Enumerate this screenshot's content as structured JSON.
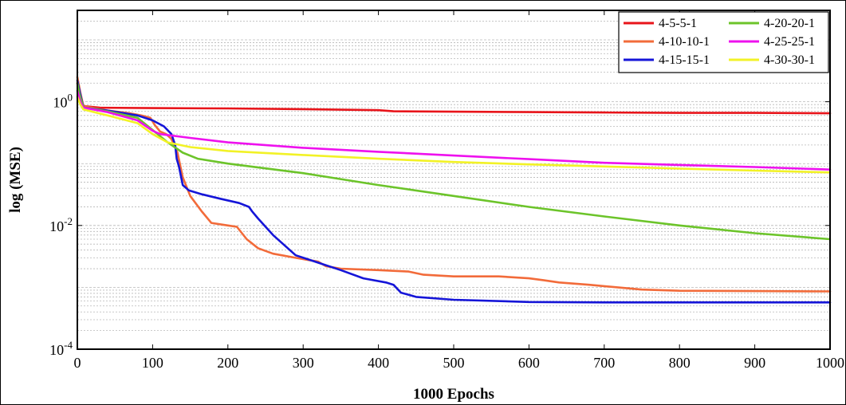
{
  "chart_data": {
    "type": "line",
    "title": "",
    "xlabel": "1000 Epochs",
    "ylabel": "log (MSE)",
    "xlim": [
      0,
      1000
    ],
    "ylim": [
      0.0001,
      30
    ],
    "yscale": "log",
    "grid": "horizontal minor dotted",
    "legend_position": "top-right",
    "x_ticks": [
      0,
      100,
      200,
      300,
      400,
      500,
      600,
      700,
      800,
      900,
      1000
    ],
    "x_tick_labels": [
      "0",
      "100",
      "200",
      "300",
      "400",
      "500",
      "600",
      "700",
      "800",
      "900",
      "1000"
    ],
    "y_ticks": [
      {
        "value": 0.0001,
        "base": "10",
        "exp": "-4"
      },
      {
        "value": 0.01,
        "base": "10",
        "exp": "-2"
      },
      {
        "value": 1,
        "base": "10",
        "exp": "0"
      }
    ],
    "series": [
      {
        "name": "4-5-5-1",
        "color": "#e8141a",
        "points": [
          [
            0,
            2.0
          ],
          [
            3,
            1.2
          ],
          [
            8,
            0.85
          ],
          [
            30,
            0.8
          ],
          [
            100,
            0.79
          ],
          [
            200,
            0.78
          ],
          [
            300,
            0.76
          ],
          [
            400,
            0.73
          ],
          [
            420,
            0.7
          ],
          [
            500,
            0.69
          ],
          [
            600,
            0.68
          ],
          [
            700,
            0.67
          ],
          [
            800,
            0.66
          ],
          [
            900,
            0.66
          ],
          [
            1000,
            0.65
          ]
        ]
      },
      {
        "name": "4-10-10-1",
        "color": "#f26b3a",
        "points": [
          [
            0,
            2.5
          ],
          [
            4,
            1.4
          ],
          [
            8,
            0.85
          ],
          [
            40,
            0.72
          ],
          [
            70,
            0.65
          ],
          [
            85,
            0.6
          ],
          [
            97,
            0.55
          ],
          [
            103,
            0.42
          ],
          [
            110,
            0.33
          ],
          [
            118,
            0.3
          ],
          [
            125,
            0.25
          ],
          [
            133,
            0.15
          ],
          [
            140,
            0.06
          ],
          [
            150,
            0.03
          ],
          [
            165,
            0.017
          ],
          [
            178,
            0.011
          ],
          [
            200,
            0.01
          ],
          [
            212,
            0.0095
          ],
          [
            225,
            0.006
          ],
          [
            240,
            0.0043
          ],
          [
            260,
            0.0035
          ],
          [
            290,
            0.003
          ],
          [
            320,
            0.0026
          ],
          [
            330,
            0.0022
          ],
          [
            350,
            0.002
          ],
          [
            400,
            0.0019
          ],
          [
            440,
            0.0018
          ],
          [
            460,
            0.0016
          ],
          [
            500,
            0.0015
          ],
          [
            560,
            0.0015
          ],
          [
            600,
            0.0014
          ],
          [
            620,
            0.0013
          ],
          [
            640,
            0.0012
          ],
          [
            680,
            0.0011
          ],
          [
            750,
            0.00092
          ],
          [
            800,
            0.00088
          ],
          [
            900,
            0.00087
          ],
          [
            1000,
            0.00086
          ]
        ]
      },
      {
        "name": "4-15-15-1",
        "color": "#1515d8",
        "points": [
          [
            0,
            2.2
          ],
          [
            4,
            1.3
          ],
          [
            8,
            0.8
          ],
          [
            40,
            0.72
          ],
          [
            80,
            0.6
          ],
          [
            100,
            0.5
          ],
          [
            115,
            0.4
          ],
          [
            125,
            0.3
          ],
          [
            130,
            0.2
          ],
          [
            132,
            0.12
          ],
          [
            135,
            0.09
          ],
          [
            140,
            0.045
          ],
          [
            148,
            0.037
          ],
          [
            165,
            0.032
          ],
          [
            190,
            0.027
          ],
          [
            215,
            0.023
          ],
          [
            228,
            0.02
          ],
          [
            232,
            0.017
          ],
          [
            240,
            0.013
          ],
          [
            260,
            0.007
          ],
          [
            290,
            0.0033
          ],
          [
            320,
            0.0025
          ],
          [
            350,
            0.0019
          ],
          [
            380,
            0.0014
          ],
          [
            410,
            0.0012
          ],
          [
            420,
            0.0011
          ],
          [
            430,
            0.00082
          ],
          [
            450,
            0.0007
          ],
          [
            500,
            0.00063
          ],
          [
            600,
            0.00058
          ],
          [
            700,
            0.00057
          ],
          [
            800,
            0.00057
          ],
          [
            900,
            0.00057
          ],
          [
            1000,
            0.00057
          ]
        ]
      },
      {
        "name": "4-20-20-1",
        "color": "#6cc42a",
        "points": [
          [
            0,
            2.0
          ],
          [
            3,
            1.3
          ],
          [
            8,
            0.8
          ],
          [
            40,
            0.7
          ],
          [
            80,
            0.55
          ],
          [
            100,
            0.35
          ],
          [
            120,
            0.22
          ],
          [
            140,
            0.15
          ],
          [
            160,
            0.12
          ],
          [
            200,
            0.1
          ],
          [
            300,
            0.07
          ],
          [
            400,
            0.045
          ],
          [
            500,
            0.03
          ],
          [
            600,
            0.02
          ],
          [
            700,
            0.014
          ],
          [
            800,
            0.01
          ],
          [
            900,
            0.0075
          ],
          [
            1000,
            0.006
          ]
        ]
      },
      {
        "name": "4-25-25-1",
        "color": "#ee11ee",
        "points": [
          [
            0,
            1.5
          ],
          [
            4,
            1.0
          ],
          [
            8,
            0.8
          ],
          [
            40,
            0.68
          ],
          [
            80,
            0.5
          ],
          [
            100,
            0.34
          ],
          [
            110,
            0.3
          ],
          [
            150,
            0.26
          ],
          [
            200,
            0.22
          ],
          [
            300,
            0.18
          ],
          [
            400,
            0.155
          ],
          [
            500,
            0.135
          ],
          [
            600,
            0.118
          ],
          [
            700,
            0.103
          ],
          [
            800,
            0.095
          ],
          [
            900,
            0.088
          ],
          [
            1000,
            0.08
          ]
        ]
      },
      {
        "name": "4-30-30-1",
        "color": "#f2f226",
        "points": [
          [
            0,
            1.2
          ],
          [
            4,
            0.9
          ],
          [
            8,
            0.75
          ],
          [
            40,
            0.6
          ],
          [
            80,
            0.45
          ],
          [
            100,
            0.3
          ],
          [
            120,
            0.22
          ],
          [
            150,
            0.185
          ],
          [
            200,
            0.16
          ],
          [
            300,
            0.138
          ],
          [
            400,
            0.12
          ],
          [
            500,
            0.106
          ],
          [
            600,
            0.097
          ],
          [
            700,
            0.09
          ],
          [
            800,
            0.083
          ],
          [
            900,
            0.077
          ],
          [
            1000,
            0.072
          ]
        ]
      }
    ]
  }
}
